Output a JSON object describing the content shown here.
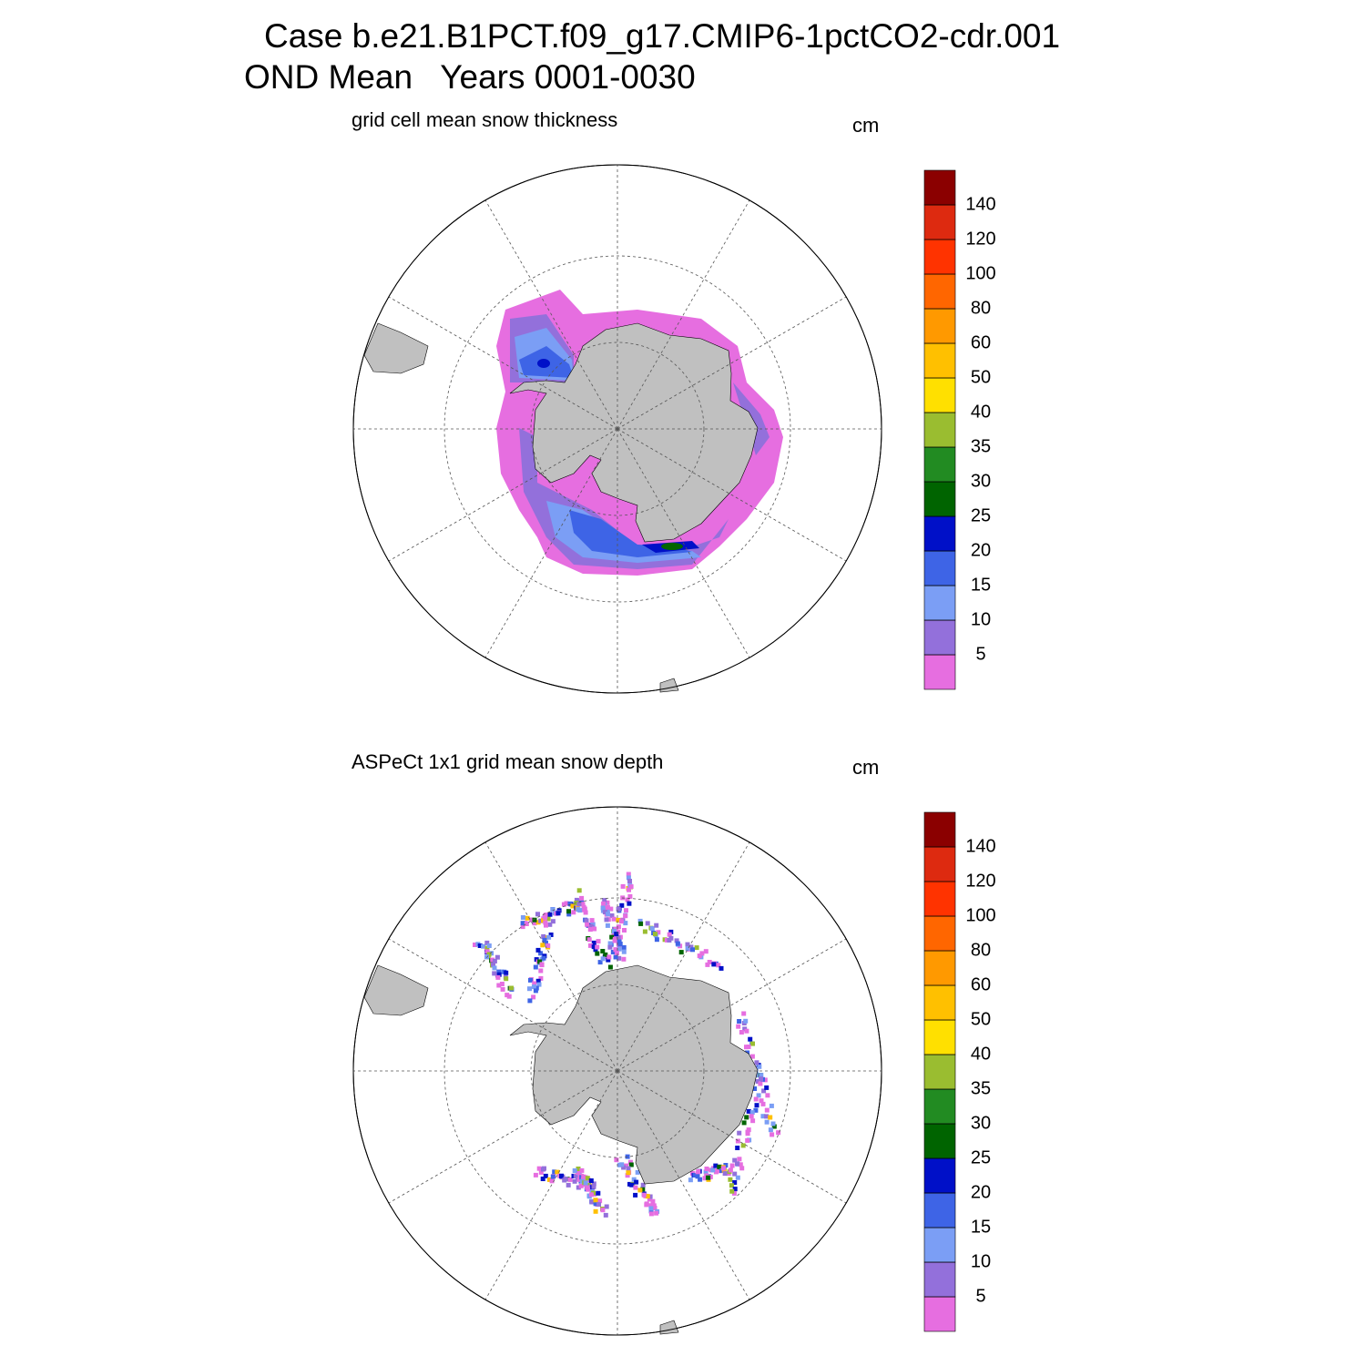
{
  "title": [
    "Case b.e21.B1PCT.f09_g17.CMIP6-1pctCO2-cdr.001",
    "OND Mean   Years 0001-0030"
  ],
  "panels": [
    {
      "subtitle": "grid cell mean snow thickness",
      "units": "cm",
      "colorbar": {
        "levels": [
          5,
          10,
          15,
          20,
          25,
          30,
          35,
          40,
          50,
          60,
          80,
          100,
          120,
          140
        ],
        "colors": [
          "#e66ee0",
          "#9370db",
          "#7b9ef5",
          "#3e64e6",
          "#0010c8",
          "#006400",
          "#228b22",
          "#9abd30",
          "#ffe000",
          "#ffc000",
          "#ff9900",
          "#ff6600",
          "#ff3300",
          "#dd2a10",
          "#8b0000"
        ]
      }
    },
    {
      "subtitle": "ASPeCt 1x1 grid mean snow depth",
      "units": "cm",
      "colorbar": {
        "levels": [
          5,
          10,
          15,
          20,
          25,
          30,
          35,
          40,
          50,
          60,
          80,
          100,
          120,
          140
        ],
        "colors": [
          "#e66ee0",
          "#9370db",
          "#7b9ef5",
          "#3e64e6",
          "#0010c8",
          "#006400",
          "#228b22",
          "#9abd30",
          "#ffe000",
          "#ffc000",
          "#ff9900",
          "#ff6600",
          "#ff3300",
          "#dd2a10",
          "#8b0000"
        ]
      }
    }
  ]
}
